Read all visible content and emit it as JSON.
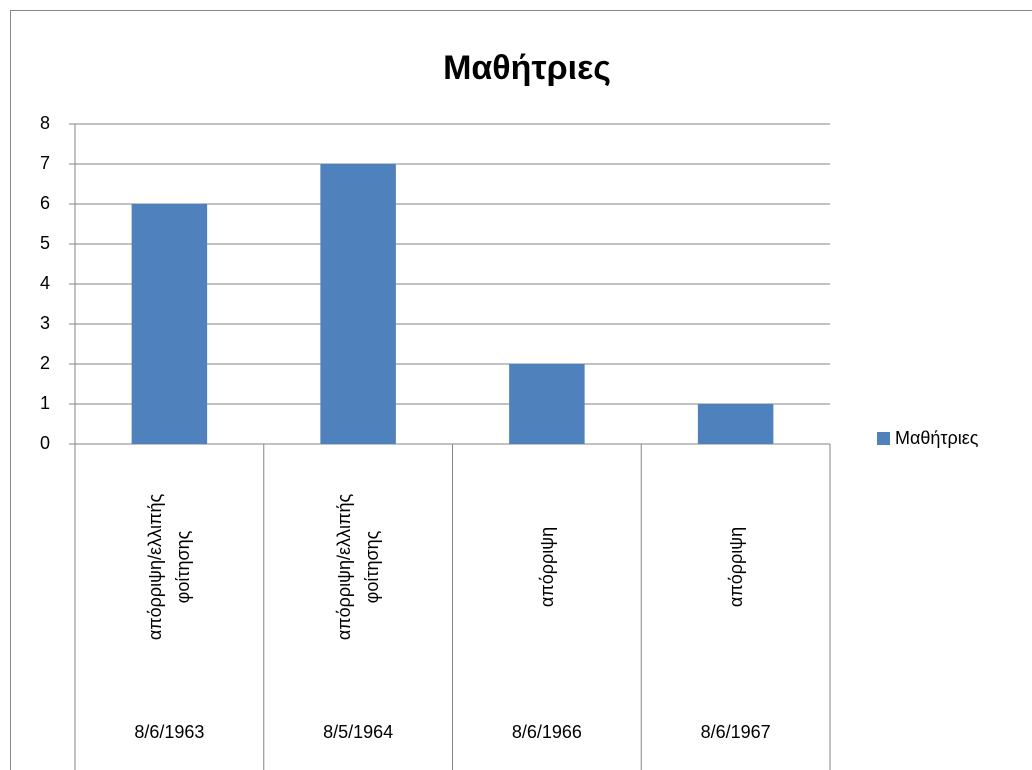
{
  "chart_data": {
    "type": "bar",
    "title": "Μαθήτριες",
    "categories": [
      "απόρριψη/ελλιπής\nφοίτησης",
      "απόρριψη/ελλιπής\nφοίτησης",
      "απόρριψη",
      "απόρριψη"
    ],
    "category_groups": [
      "8/6/1963",
      "8/5/1964",
      "8/6/1966",
      "8/6/1967"
    ],
    "series": [
      {
        "name": "Μαθήτριες",
        "color": "#4f81bd",
        "values": [
          6,
          7,
          2,
          1
        ]
      }
    ],
    "ylim": [
      0,
      8
    ],
    "yticks": [
      0,
      1,
      2,
      3,
      4,
      5,
      6,
      7,
      8
    ],
    "grid": true,
    "legend": "right"
  }
}
